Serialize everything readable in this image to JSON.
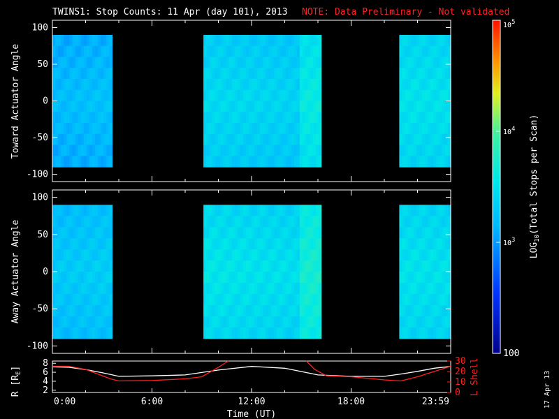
{
  "header": {
    "title": "TWINS1: Stop Counts: 11 Apr (day 101), 2013",
    "note": "NOTE: Data Preliminary - Not validated"
  },
  "stamp": "17 Apr 13",
  "colors": {
    "background": "#000000",
    "axes": "#ffffff",
    "note": "#ff2020",
    "r_line": "#ffffff",
    "lshell_line": "#ff2020"
  },
  "chart_data": [
    {
      "type": "heatmap",
      "ylabel": "Toward Actuator Angle",
      "ylim": [
        -110,
        110
      ],
      "yticks": [
        -100,
        -50,
        0,
        50,
        100
      ],
      "xlim_hours": [
        0,
        24
      ],
      "data_angle_range": [
        -90,
        90
      ],
      "xticks": [
        "0:00",
        "6:00",
        "12:00",
        "18:00",
        "23:59"
      ],
      "data_blocks_hours": [
        {
          "start": 0.0,
          "end": 3.6,
          "level": 3.2
        },
        {
          "start": 9.1,
          "end": 14.9,
          "level": 3.4
        },
        {
          "start": 14.9,
          "end": 16.2,
          "level": 3.7
        },
        {
          "start": 20.9,
          "end": 24.0,
          "level": 3.4
        }
      ],
      "data_gaps_hours": [
        [
          3.6,
          9.1
        ],
        [
          16.2,
          20.9
        ]
      ]
    },
    {
      "type": "heatmap",
      "ylabel": "Away Actuator Angle",
      "ylim": [
        -110,
        110
      ],
      "yticks": [
        -100,
        -50,
        0,
        50,
        100
      ],
      "xlim_hours": [
        0,
        24
      ],
      "data_angle_range": [
        -90,
        90
      ],
      "xticks": [
        "0:00",
        "6:00",
        "12:00",
        "18:00",
        "23:59"
      ],
      "data_blocks_hours": [
        {
          "start": 0.0,
          "end": 3.6,
          "level": 3.3
        },
        {
          "start": 9.1,
          "end": 14.9,
          "level": 3.5
        },
        {
          "start": 14.9,
          "end": 16.2,
          "level": 3.8
        },
        {
          "start": 20.9,
          "end": 24.0,
          "level": 3.4
        }
      ],
      "data_gaps_hours": [
        [
          3.6,
          9.1
        ],
        [
          16.2,
          20.9
        ]
      ]
    },
    {
      "type": "line",
      "xlabel": "Time (UT)",
      "xticks": [
        "0:00",
        "6:00",
        "12:00",
        "18:00",
        "23:59"
      ],
      "xlim_hours": [
        0,
        24
      ],
      "ylabel_left": "R [R",
      "ylabel_left_sub": "E",
      "ylabel_left_end": "]",
      "yticks_left": [
        2,
        4,
        6,
        8
      ],
      "ylim_left": [
        1.5,
        8.5
      ],
      "ylabel_right": "L Shell",
      "yticks_right": [
        0,
        10,
        20,
        30
      ],
      "ylim_right": [
        0,
        30
      ],
      "series": [
        {
          "axis": "left",
          "x": [
            0,
            1,
            2,
            3,
            3.5,
            4,
            6,
            8,
            10,
            12,
            14,
            16,
            18,
            20,
            21,
            22,
            23,
            24
          ],
          "y": [
            7.2,
            7.1,
            6.6,
            5.9,
            5.5,
            5.1,
            5.2,
            5.4,
            6.5,
            7.3,
            6.9,
            5.4,
            5.1,
            5.1,
            5.6,
            6.2,
            6.9,
            7.3
          ]
        },
        {
          "axis": "right",
          "x": [
            0,
            1,
            2,
            3,
            3.5,
            4,
            6,
            8,
            9,
            10,
            10.6
          ],
          "y": [
            25,
            25,
            22,
            16,
            13,
            11,
            11.5,
            13,
            15,
            24,
            30
          ]
        },
        {
          "axis": "right",
          "x": [
            15.3,
            15.8,
            16.5,
            18,
            20,
            21,
            22,
            23,
            24
          ],
          "y": [
            30,
            22,
            16,
            15,
            12,
            11,
            15,
            20,
            25
          ]
        }
      ]
    },
    {
      "type": "colorbar",
      "label": "LOG",
      "label_sub": "10",
      "label_rest": "(Total Stops per Scan)",
      "scale": "log",
      "range": [
        100,
        100000
      ],
      "ticks": [
        {
          "value": 100,
          "text": "100"
        },
        {
          "value": 1000,
          "base": "10",
          "exp": "3"
        },
        {
          "value": 10000,
          "base": "10",
          "exp": "4"
        },
        {
          "value": 100000,
          "base": "10",
          "exp": "5"
        }
      ]
    }
  ]
}
